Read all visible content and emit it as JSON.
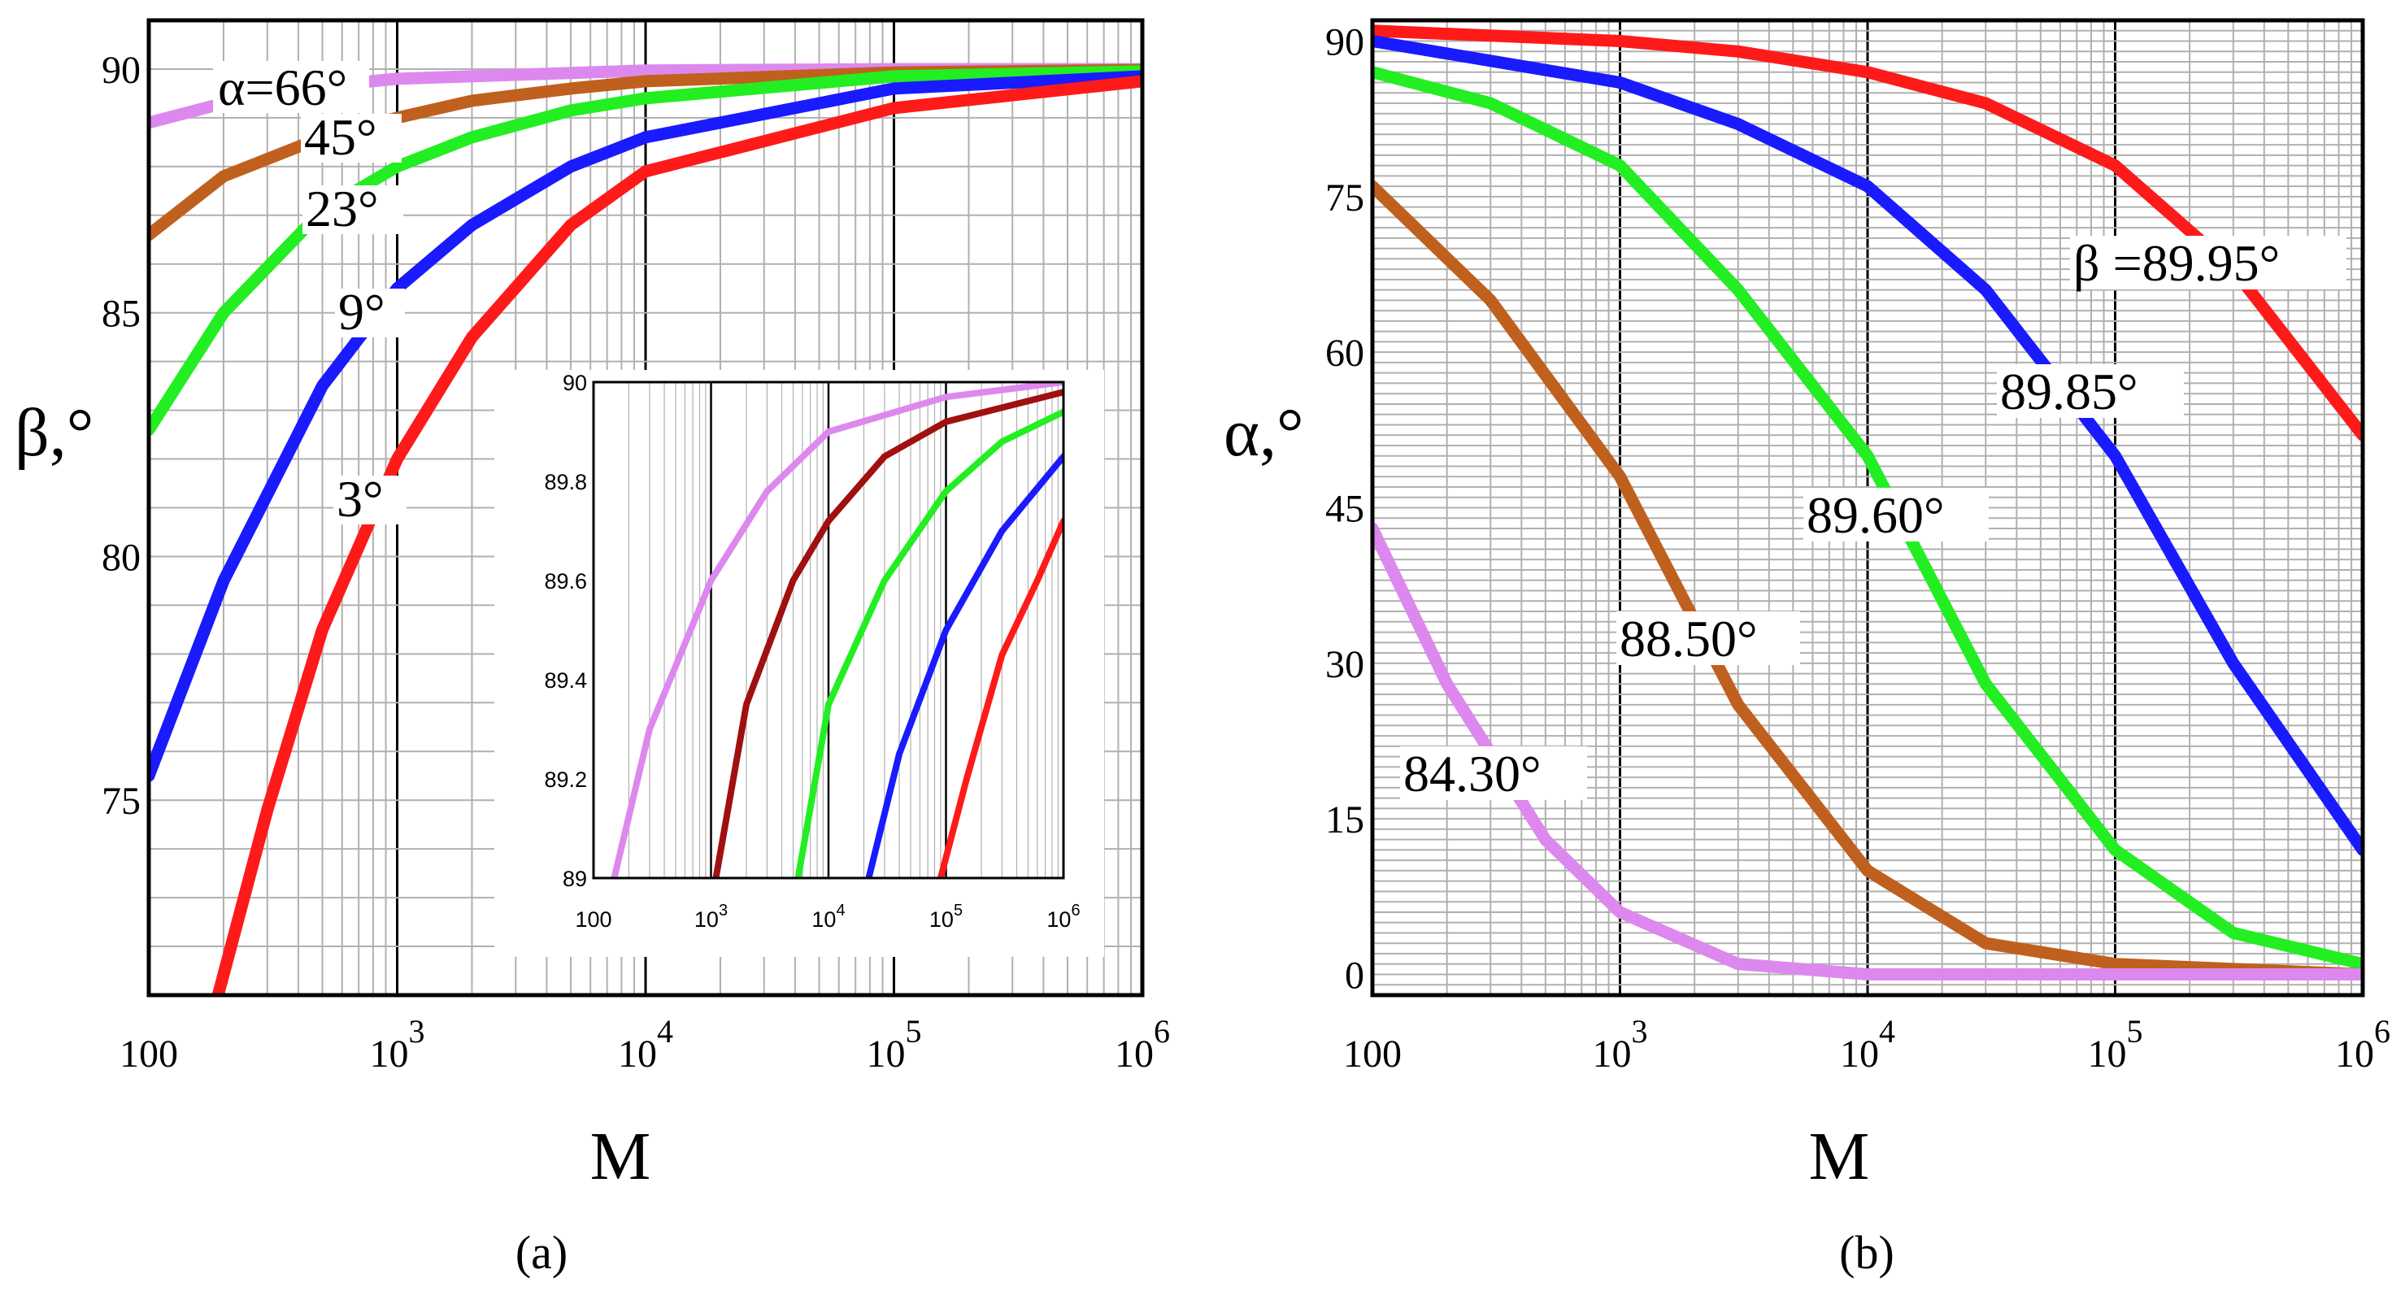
{
  "figure": {
    "panel_a_label": "(a)",
    "panel_b_label": "(b)",
    "colors": {
      "red": "#ff1a1a",
      "blue": "#1a1aff",
      "green": "#22ee22",
      "brown": "#c0601e",
      "violet": "#dd88ee",
      "darkred": "#a01010",
      "major_grid": "#000000",
      "minor_grid": "#b0b0b0",
      "frame": "#000000"
    }
  },
  "chart_data": [
    {
      "id": "panel-a",
      "type": "line",
      "xscale": "log",
      "xlim": [
        100,
        1000000
      ],
      "ylim": [
        71,
        91
      ],
      "xlabel": "M",
      "ylabel": "β,°",
      "xtick_labels": [
        {
          "v": 100,
          "base": "100",
          "exp": ""
        },
        {
          "v": 1000,
          "base": "10",
          "exp": "3"
        },
        {
          "v": 10000,
          "base": "10",
          "exp": "4"
        },
        {
          "v": 100000,
          "base": "10",
          "exp": "5"
        },
        {
          "v": 1000000,
          "base": "10",
          "exp": "6"
        }
      ],
      "yticks": [
        75,
        80,
        85,
        90
      ],
      "series": [
        {
          "name": "α=66°",
          "color_key": "violet",
          "x": [
            100,
            200,
            500,
            1000,
            10000,
            100000,
            1000000
          ],
          "y": [
            88.9,
            89.3,
            89.65,
            89.8,
            89.97,
            90.0,
            90.0
          ]
        },
        {
          "name": "45°",
          "color_key": "brown",
          "x": [
            100,
            200,
            500,
            1000,
            2000,
            5000,
            10000,
            100000,
            1000000
          ],
          "y": [
            86.6,
            87.8,
            88.6,
            89.0,
            89.35,
            89.6,
            89.75,
            89.93,
            89.98
          ]
        },
        {
          "name": "23°",
          "color_key": "green",
          "x": [
            100,
            200,
            500,
            1000,
            2000,
            5000,
            10000,
            100000,
            1000000
          ],
          "y": [
            82.6,
            85.0,
            87.1,
            88.0,
            88.6,
            89.15,
            89.4,
            89.85,
            89.95
          ]
        },
        {
          "name": "9°",
          "color_key": "blue",
          "x": [
            100,
            200,
            500,
            1000,
            2000,
            5000,
            10000,
            100000,
            1000000
          ],
          "y": [
            75.5,
            79.5,
            83.5,
            85.5,
            86.8,
            88.0,
            88.6,
            89.6,
            89.85
          ]
        },
        {
          "name": "3°",
          "color_key": "red",
          "x": [
            190,
            300,
            500,
            1000,
            2000,
            5000,
            10000,
            100000,
            1000000
          ],
          "y": [
            71.0,
            74.8,
            78.5,
            82.0,
            84.5,
            86.8,
            87.9,
            89.2,
            89.75
          ]
        }
      ],
      "annotations": [
        "α=66°",
        "45°",
        "23°",
        "9°",
        "3°"
      ],
      "inset": {
        "type": "line",
        "xscale": "log",
        "xlim": [
          100,
          1000000
        ],
        "ylim": [
          89,
          90
        ],
        "xtick_labels": [
          {
            "v": 100,
            "base": "100",
            "exp": ""
          },
          {
            "v": 1000,
            "base": "10",
            "exp": "3"
          },
          {
            "v": 10000,
            "base": "10",
            "exp": "4"
          },
          {
            "v": 100000,
            "base": "10",
            "exp": "5"
          },
          {
            "v": 1000000,
            "base": "10",
            "exp": "6"
          }
        ],
        "ytick_labels": [
          "89",
          "89.2",
          "89.4",
          "89.6",
          "89.8",
          "90"
        ],
        "yticks": [
          89,
          89.2,
          89.4,
          89.6,
          89.8,
          90
        ],
        "series": [
          {
            "color_key": "violet",
            "x": [
              150,
              300,
              1000,
              3000,
              10000,
              100000,
              1000000
            ],
            "y": [
              89.0,
              89.3,
              89.6,
              89.78,
              89.9,
              89.97,
              90.0
            ]
          },
          {
            "color_key": "darkred",
            "x": [
              1100,
              2000,
              5000,
              10000,
              30000,
              100000,
              1000000
            ],
            "y": [
              89.0,
              89.35,
              89.6,
              89.72,
              89.85,
              89.92,
              89.98
            ]
          },
          {
            "color_key": "green",
            "x": [
              5500,
              10000,
              30000,
              100000,
              300000,
              1000000
            ],
            "y": [
              89.0,
              89.35,
              89.6,
              89.78,
              89.88,
              89.94
            ]
          },
          {
            "color_key": "blue",
            "x": [
              22000,
              40000,
              100000,
              300000,
              1000000
            ],
            "y": [
              89.0,
              89.25,
              89.5,
              89.7,
              89.85
            ]
          },
          {
            "color_key": "red",
            "x": [
              90000,
              150000,
              300000,
              600000,
              1000000
            ],
            "y": [
              89.0,
              89.2,
              89.45,
              89.6,
              89.72
            ]
          }
        ]
      }
    },
    {
      "id": "panel-b",
      "type": "line",
      "xscale": "log",
      "xlim": [
        100,
        1000000
      ],
      "ylim": [
        -2,
        92
      ],
      "xlabel": "M",
      "ylabel": "α,°",
      "xtick_labels": [
        {
          "v": 100,
          "base": "100",
          "exp": ""
        },
        {
          "v": 1000,
          "base": "10",
          "exp": "3"
        },
        {
          "v": 10000,
          "base": "10",
          "exp": "4"
        },
        {
          "v": 100000,
          "base": "10",
          "exp": "5"
        },
        {
          "v": 1000000,
          "base": "10",
          "exp": "6"
        }
      ],
      "yticks": [
        0,
        15,
        30,
        45,
        60,
        75,
        90
      ],
      "series": [
        {
          "name": "β =89.95°",
          "color_key": "red",
          "x": [
            100,
            1000,
            3000,
            10000,
            30000,
            100000,
            300000,
            1000000
          ],
          "y": [
            91,
            90,
            89,
            87,
            84,
            78,
            68,
            52
          ]
        },
        {
          "name": "89.85°",
          "color_key": "blue",
          "x": [
            100,
            1000,
            3000,
            10000,
            30000,
            100000,
            300000,
            1000000
          ],
          "y": [
            90,
            86,
            82,
            76,
            66,
            50,
            30,
            12
          ]
        },
        {
          "name": "89.60°",
          "color_key": "green",
          "x": [
            100,
            300,
            1000,
            3000,
            10000,
            30000,
            100000,
            300000,
            1000000
          ],
          "y": [
            87,
            84,
            78,
            66,
            50,
            28,
            12,
            4,
            1
          ]
        },
        {
          "name": "88.50°",
          "color_key": "brown",
          "x": [
            100,
            300,
            1000,
            3000,
            10000,
            30000,
            100000,
            1000000
          ],
          "y": [
            76,
            65,
            48,
            26,
            10,
            3,
            1,
            0
          ]
        },
        {
          "name": "84.30°",
          "color_key": "violet",
          "x": [
            100,
            200,
            500,
            1000,
            3000,
            10000,
            100000,
            1000000
          ],
          "y": [
            43,
            28,
            13,
            6,
            1,
            0,
            0,
            0
          ]
        }
      ],
      "annotations": [
        "β =89.95°",
        "89.85°",
        "89.60°",
        "88.50°",
        "84.30°"
      ]
    }
  ]
}
